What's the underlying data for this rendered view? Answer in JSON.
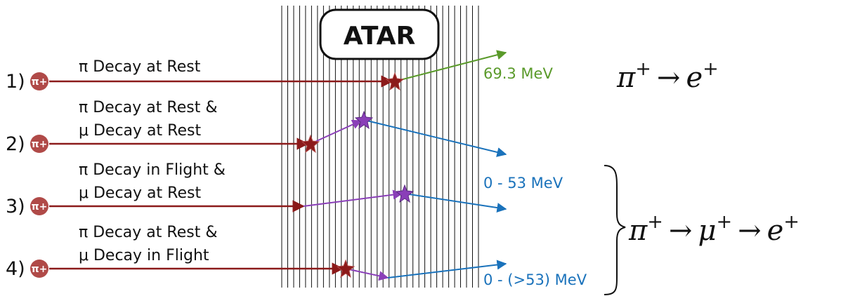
{
  "atar": {
    "title": "ATAR"
  },
  "pion_label": "π+",
  "channels": [
    {
      "index": "1)",
      "line1": "π Decay at Rest",
      "line2": ""
    },
    {
      "index": "2)",
      "line1": "π Decay at Rest &",
      "line2": "μ Decay at Rest"
    },
    {
      "index": "3)",
      "line1": "π Decay in Flight &",
      "line2": "μ Decay at Rest"
    },
    {
      "index": "4)",
      "line1": "π Decay at Rest &",
      "line2": "μ Decay in Flight"
    }
  ],
  "energies": {
    "e1": "69.3 MeV",
    "e2": "0 - 53 MeV",
    "e3": "0 - (>53) MeV"
  },
  "formulas": {
    "f1": {
      "a": "π",
      "a_sup": "+",
      "arrow": "→",
      "b": "e",
      "b_sup": "+"
    },
    "f2": {
      "a": "π",
      "a_sup": "+",
      "arrow1": "→",
      "b": "μ",
      "b_sup": "+",
      "arrow2": "→",
      "c": "e",
      "c_sup": "+"
    }
  },
  "colors": {
    "pion": "#8b1a1a",
    "pion_marker": "#b04a48",
    "muon": "#8a3fb8",
    "positron_fast": "#5a9a2a",
    "positron": "#1a72bb"
  }
}
